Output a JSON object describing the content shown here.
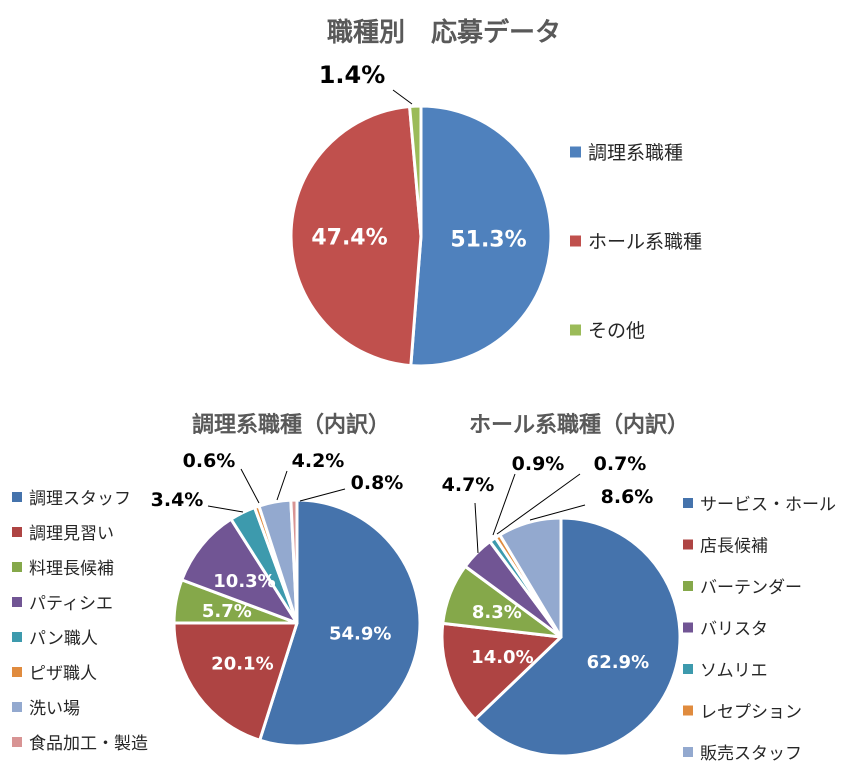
{
  "chart_data": [
    {
      "type": "pie",
      "title": "職種別　応募データ",
      "categories": [
        "調理系職種",
        "ホール系職種",
        "その他"
      ],
      "values": [
        51.3,
        47.4,
        1.4
      ],
      "data_labels": [
        "51.3%",
        "47.4%",
        "1.4%"
      ],
      "colors": [
        "#4F81BD",
        "#C0504D",
        "#9BBB59"
      ],
      "legend": "right"
    },
    {
      "type": "pie",
      "title": "調理系職種（内訳）",
      "categories": [
        "調理スタッフ",
        "調理見習い",
        "料理長候補",
        "パティシエ",
        "パン職人",
        "ピザ職人",
        "洗い場",
        "食品加工・製造"
      ],
      "values": [
        54.9,
        20.1,
        5.7,
        10.3,
        3.4,
        0.6,
        4.2,
        0.8
      ],
      "data_labels": [
        "54.9%",
        "20.1%",
        "5.7%",
        "10.3%",
        "3.4%",
        "0.6%",
        "4.2%",
        "0.8%"
      ],
      "colors": [
        "#4573AC",
        "#AE4443",
        "#85A84A",
        "#715594",
        "#3D9AAD",
        "#E08B3E",
        "#93A9CF",
        "#D89494"
      ],
      "legend": "left"
    },
    {
      "type": "pie",
      "title": "ホール系職種（内訳）",
      "categories": [
        "サービス・ホール",
        "店長候補",
        "バーテンダー",
        "バリスタ",
        "ソムリエ",
        "レセプション",
        "販売スタッフ"
      ],
      "values": [
        62.9,
        14.0,
        8.3,
        4.7,
        0.9,
        0.7,
        8.6
      ],
      "data_labels": [
        "62.9%",
        "14.0%",
        "8.3%",
        "4.7%",
        "0.9%",
        "0.7%",
        "8.6%"
      ],
      "colors": [
        "#4573AC",
        "#AE4443",
        "#85A84A",
        "#715594",
        "#3D9AAD",
        "#E08B3E",
        "#93A9CF"
      ],
      "legend": "right"
    }
  ]
}
